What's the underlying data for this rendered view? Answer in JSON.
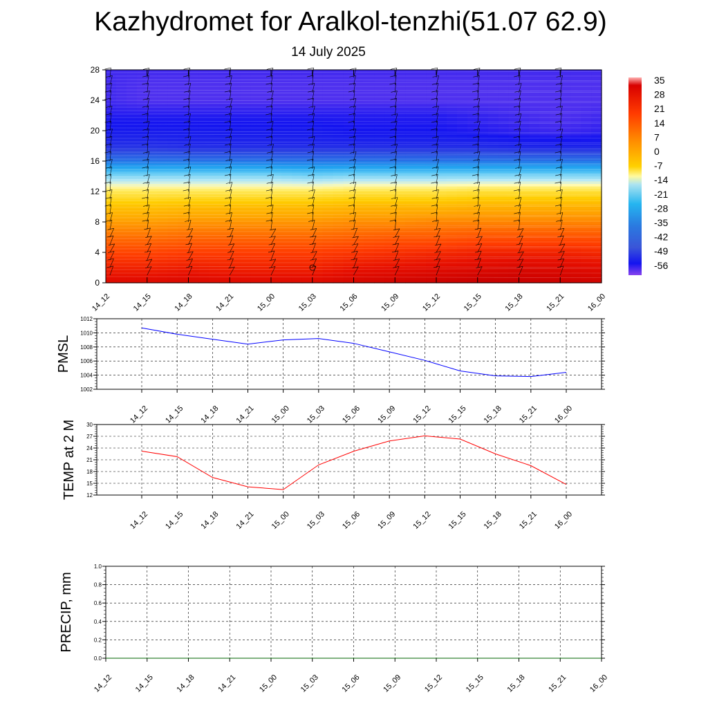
{
  "title": "Kazhydromet for Aralkol-tenzhi(51.07 62.9)",
  "subtitle": "14 July 2025",
  "chart_data": [
    {
      "type": "heatmap",
      "x_ticks": [
        "14_12",
        "14_15",
        "14_18",
        "14_21",
        "15_00",
        "15_03",
        "15_06",
        "15_09",
        "15_12",
        "15_15",
        "15_18",
        "15_21",
        "16_00"
      ],
      "yticks": [
        0,
        4,
        8,
        12,
        16,
        20,
        24,
        28
      ],
      "ylim": [
        0,
        28
      ],
      "colorbar_labels": [
        "35",
        "28",
        "21",
        "14",
        "7",
        "0",
        "-7",
        "-14",
        "-21",
        "-28",
        "-35",
        "-42",
        "-49",
        "-56"
      ],
      "levels": [
        0,
        2,
        4,
        6,
        8,
        10,
        12,
        14,
        16,
        18,
        20,
        22,
        24,
        26,
        28
      ],
      "values": [
        [
          30,
          30,
          31,
          30,
          30,
          30,
          32,
          33,
          34,
          35,
          35,
          34,
          33
        ],
        [
          25,
          25,
          26,
          25,
          25,
          25,
          27,
          28,
          29,
          30,
          31,
          30,
          29
        ],
        [
          20,
          20,
          21,
          21,
          21,
          21,
          22,
          23,
          24,
          25,
          25,
          25,
          24
        ],
        [
          14,
          14,
          15,
          15,
          15,
          15,
          16,
          17,
          17,
          18,
          18,
          18,
          18
        ],
        [
          8,
          8,
          9,
          9,
          9,
          9,
          10,
          10,
          11,
          11,
          11,
          11,
          11
        ],
        [
          2,
          2,
          3,
          3,
          3,
          3,
          4,
          4,
          4,
          5,
          5,
          5,
          5
        ],
        [
          -6,
          -6,
          -6,
          -6,
          -6,
          -6,
          -5,
          -5,
          -5,
          -4,
          -4,
          -4,
          -4
        ],
        [
          -18,
          -18,
          -18,
          -18,
          -18,
          -19,
          -18,
          -18,
          -18,
          -18,
          -18,
          -18,
          -18
        ],
        [
          -34,
          -34,
          -34,
          -34,
          -34,
          -34,
          -34,
          -34,
          -34,
          -34,
          -34,
          -34,
          -34
        ],
        [
          -45,
          -45,
          -46,
          -46,
          -46,
          -46,
          -46,
          -46,
          -46,
          -46,
          -47,
          -47,
          -47
        ],
        [
          -48,
          -48,
          -48,
          -48,
          -48,
          -48,
          -49,
          -49,
          -49,
          -50,
          -51,
          -52,
          -51
        ],
        [
          -50,
          -50,
          -50,
          -50,
          -50,
          -50,
          -50,
          -50,
          -50,
          -51,
          -52,
          -53,
          -52
        ],
        [
          -52,
          -53,
          -53,
          -53,
          -53,
          -53,
          -53,
          -53,
          -53,
          -53,
          -53,
          -53,
          -53
        ],
        [
          -52,
          -53,
          -53,
          -53,
          -53,
          -53,
          -53,
          -53,
          -53,
          -53,
          -53,
          -53,
          -53
        ],
        [
          -52,
          -52,
          -52,
          -52,
          -52,
          -52,
          -52,
          -52,
          -52,
          -52,
          -52,
          -52,
          -52
        ]
      ]
    },
    {
      "type": "line",
      "ylabel": "PMSL",
      "ylim": [
        1002,
        1012
      ],
      "yticks": [
        1002,
        1004,
        1006,
        1008,
        1010,
        1012
      ],
      "x": [
        "14_12",
        "14_15",
        "14_18",
        "14_21",
        "15_00",
        "15_03",
        "15_06",
        "15_09",
        "15_12",
        "15_15",
        "15_18",
        "15_21",
        "16_00"
      ],
      "values": [
        1010.7,
        1009.8,
        1009.1,
        1008.4,
        1009.0,
        1009.2,
        1008.5,
        1007.3,
        1006.1,
        1004.6,
        1003.9,
        1003.8,
        1004.4
      ],
      "color": "#0000ff",
      "grid": true
    },
    {
      "type": "line",
      "ylabel": "TEMP at 2 M",
      "ylim": [
        12,
        30
      ],
      "yticks": [
        12,
        15,
        18,
        21,
        24,
        27,
        30
      ],
      "x": [
        "14_12",
        "14_15",
        "14_18",
        "14_21",
        "15_00",
        "15_03",
        "15_06",
        "15_09",
        "15_12",
        "15_15",
        "15_18",
        "15_21",
        "16_00"
      ],
      "values": [
        23.2,
        21.8,
        16.5,
        14.1,
        13.4,
        19.7,
        23.2,
        25.8,
        27.1,
        26.3,
        22.5,
        19.5,
        14.7
      ],
      "color": "#ff0000",
      "grid": true
    },
    {
      "type": "line",
      "ylabel": "PRECIP, mm",
      "ylim": [
        0,
        1
      ],
      "yticks": [
        "0.0",
        "0.2",
        "0.4",
        "0.6",
        "0.8",
        "1.0"
      ],
      "x": [
        "14_12",
        "14_15",
        "14_18",
        "14_21",
        "15_00",
        "15_03",
        "15_06",
        "15_09",
        "15_12",
        "15_15",
        "15_18",
        "15_21",
        "16_00"
      ],
      "values": [
        0,
        0,
        0,
        0,
        0,
        0,
        0,
        0,
        0,
        0,
        0,
        0,
        0
      ],
      "color": "#006400",
      "grid": true
    }
  ]
}
